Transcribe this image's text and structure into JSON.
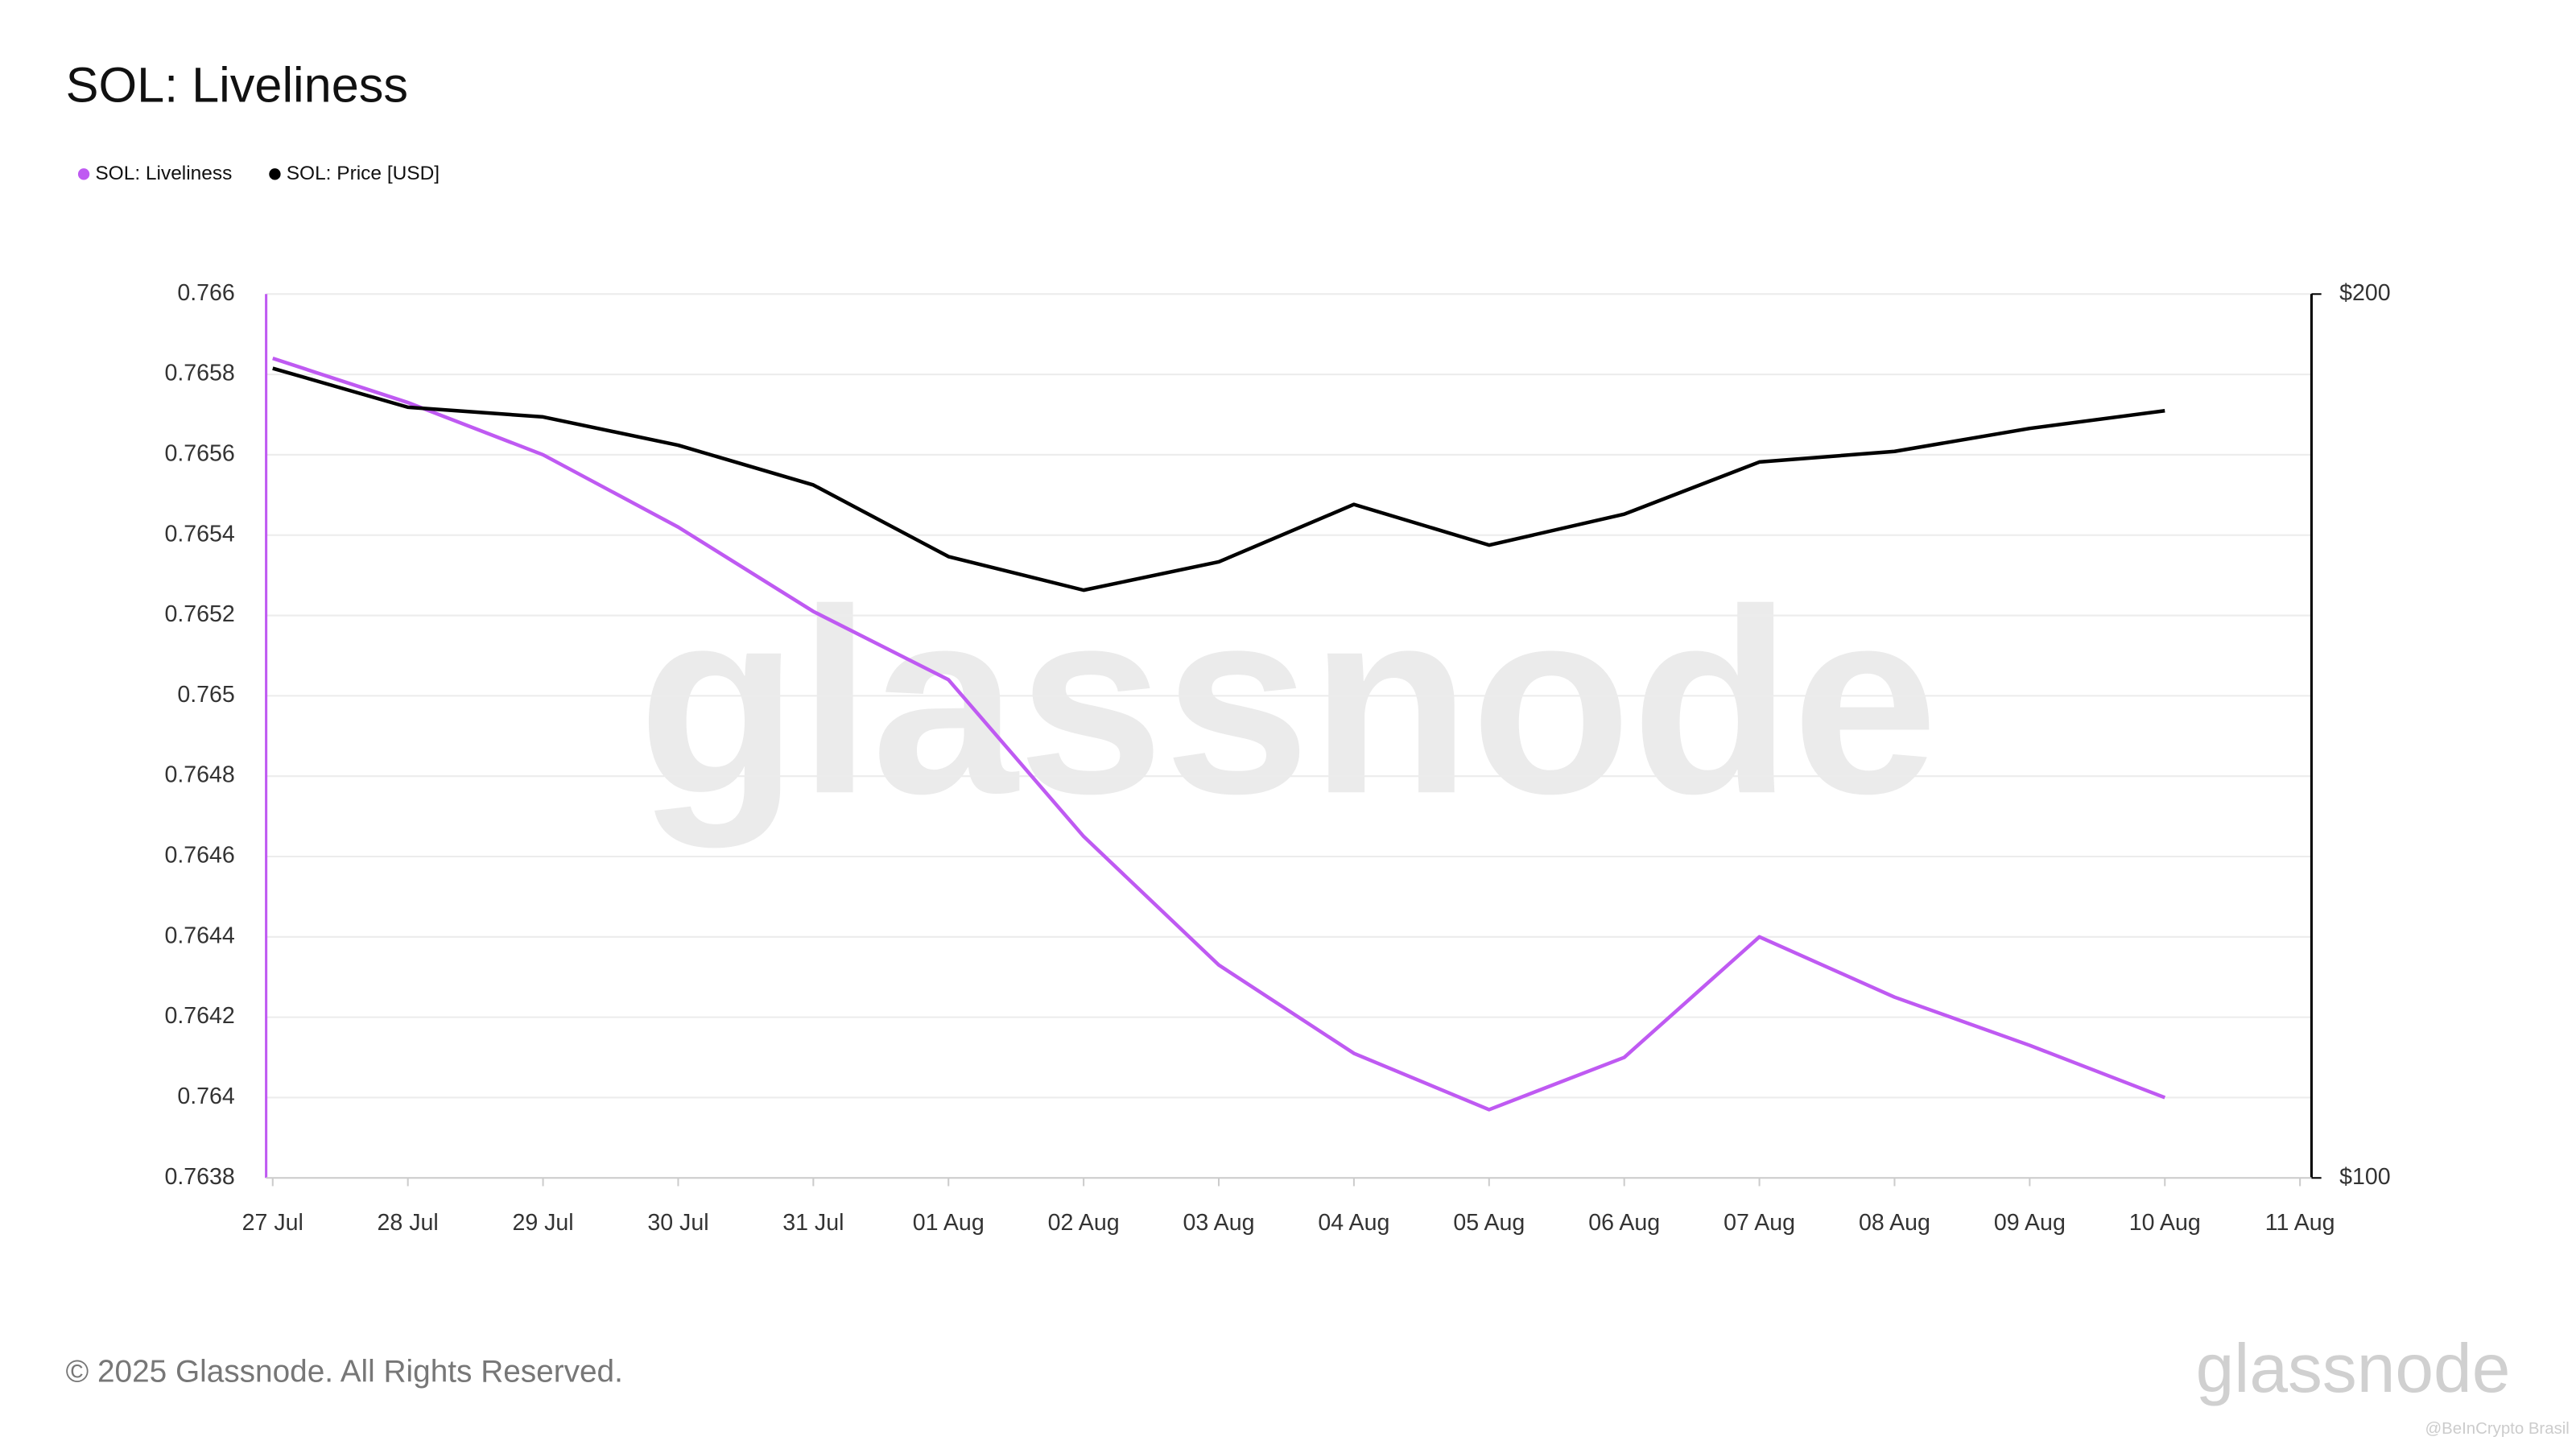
{
  "chart_data": {
    "type": "line",
    "title": "SOL: Liveliness",
    "categories": [
      "27 Jul",
      "28 Jul",
      "29 Jul",
      "30 Jul",
      "31 Jul",
      "01 Aug",
      "02 Aug",
      "03 Aug",
      "04 Aug",
      "05 Aug",
      "06 Aug",
      "07 Aug",
      "08 Aug",
      "09 Aug",
      "10 Aug",
      "11 Aug"
    ],
    "series": [
      {
        "name": "SOL: Liveliness",
        "color": "#bf5af2",
        "axis": "y",
        "values": [
          0.76584,
          0.76573,
          0.7656,
          0.76542,
          0.76521,
          0.76504,
          0.76465,
          0.76433,
          0.76411,
          0.76397,
          0.7641,
          0.7644,
          0.76425,
          0.76413,
          0.764,
          null
        ]
      },
      {
        "name": "SOL: Price [USD]",
        "color": "#000000",
        "axis": "y2",
        "values": [
          191.6,
          187.2,
          186.1,
          182.9,
          178.4,
          170.3,
          166.5,
          169.7,
          176.2,
          171.6,
          175.1,
          181,
          182.2,
          184.8,
          186.8,
          null
        ]
      }
    ],
    "ylim": [
      0.7638,
      0.766
    ],
    "yticks": [
      0.7638,
      0.764,
      0.7642,
      0.7644,
      0.7646,
      0.7648,
      0.765,
      0.7652,
      0.7654,
      0.7656,
      0.7658,
      0.766
    ],
    "y2lim": [
      100,
      200
    ],
    "y2ticks": [
      {
        "value": 100,
        "label": "$100"
      },
      {
        "value": 200,
        "label": "$200"
      }
    ],
    "grid": true,
    "legend": "top-left"
  },
  "watermark": "glassnode",
  "footer": "© 2025 Glassnode. All Rights Reserved.",
  "logo": "glassnode",
  "credit": "@BeInCrypto Brasil"
}
